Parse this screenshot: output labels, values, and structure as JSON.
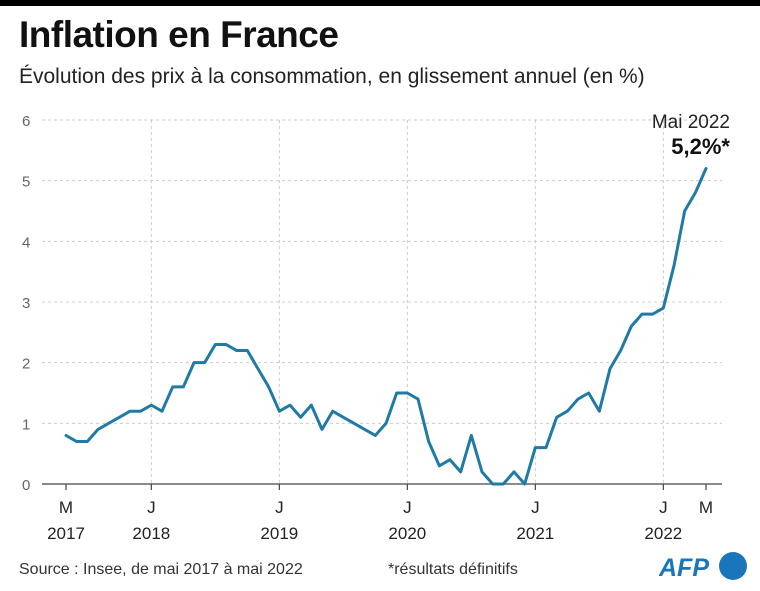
{
  "title": "Inflation en France",
  "subtitle": "Évolution des prix à la consommation, en glissement annuel (en %)",
  "source": "Source : Insee, de mai 2017 à mai 2022",
  "note": "*résultats définitifs",
  "logo_text": "AFP",
  "colors": {
    "line": "#1f7aa6",
    "grid": "#cccccc",
    "axis": "#444444",
    "logo_blue": "#1b75bb"
  },
  "chart_data": {
    "type": "line",
    "title": "Inflation en France",
    "xlabel": "",
    "ylabel": "",
    "ylim": [
      0,
      6
    ],
    "grid": true,
    "yticks": [
      "0",
      "1",
      "2",
      "3",
      "4",
      "5",
      "6"
    ],
    "xticks": [
      {
        "month": "M",
        "year": "2017",
        "index": 0
      },
      {
        "month": "J",
        "year": "2018",
        "index": 8
      },
      {
        "month": "J",
        "year": "2019",
        "index": 20
      },
      {
        "month": "J",
        "year": "2020",
        "index": 32
      },
      {
        "month": "J",
        "year": "2021",
        "index": 44
      },
      {
        "month": "J",
        "year": "2022",
        "index": 56
      },
      {
        "month": "M",
        "year": "",
        "index": 60
      }
    ],
    "annotation": {
      "label": "Mai 2022",
      "value": "5,2%*"
    },
    "series": [
      {
        "name": "Glissement annuel (%)",
        "start": "2017-05",
        "values": [
          0.8,
          0.7,
          0.7,
          0.9,
          1.0,
          1.1,
          1.2,
          1.2,
          1.3,
          1.2,
          1.6,
          1.6,
          2.0,
          2.0,
          2.3,
          2.3,
          2.2,
          2.2,
          1.9,
          1.6,
          1.2,
          1.3,
          1.1,
          1.3,
          0.9,
          1.2,
          1.1,
          1.0,
          0.9,
          0.8,
          1.0,
          1.5,
          1.5,
          1.4,
          0.7,
          0.3,
          0.4,
          0.2,
          0.8,
          0.2,
          0.0,
          0.0,
          0.2,
          0.0,
          0.6,
          0.6,
          1.1,
          1.2,
          1.4,
          1.5,
          1.2,
          1.9,
          2.2,
          2.6,
          2.8,
          2.8,
          2.9,
          3.6,
          4.5,
          4.8,
          5.2
        ]
      }
    ]
  }
}
